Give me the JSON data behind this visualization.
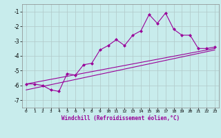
{
  "xlabel": "Windchill (Refroidissement éolien,°C)",
  "ylabel": "",
  "xlim": [
    -0.5,
    23.5
  ],
  "ylim": [
    -7.5,
    -0.5
  ],
  "yticks": [
    -7,
    -6,
    -5,
    -4,
    -3,
    -2,
    -1
  ],
  "xticks": [
    0,
    1,
    2,
    3,
    4,
    5,
    6,
    7,
    8,
    9,
    10,
    11,
    12,
    13,
    14,
    15,
    16,
    17,
    18,
    19,
    20,
    21,
    22,
    23
  ],
  "bg_color": "#c8ecec",
  "line_color": "#990099",
  "grid_color": "#b0c8c8",
  "line1_x": [
    0,
    1,
    2,
    3,
    4,
    5,
    6,
    7,
    8,
    9,
    10,
    11,
    12,
    13,
    14,
    15,
    16,
    17,
    18,
    19,
    20,
    21,
    22,
    23
  ],
  "line1_y": [
    -5.9,
    -5.9,
    -6.0,
    -6.3,
    -6.4,
    -5.2,
    -5.3,
    -4.6,
    -4.5,
    -3.6,
    -3.3,
    -2.9,
    -3.3,
    -2.6,
    -2.3,
    -1.2,
    -1.8,
    -1.1,
    -2.2,
    -2.6,
    -2.6,
    -3.5,
    -3.5,
    -3.4
  ],
  "line2_x": [
    0,
    23
  ],
  "line2_y": [
    -5.9,
    -3.5
  ],
  "line3_x": [
    0,
    23
  ],
  "line3_y": [
    -6.3,
    -3.6
  ],
  "marker": "D",
  "markersize": 2.0,
  "linewidth": 0.8
}
